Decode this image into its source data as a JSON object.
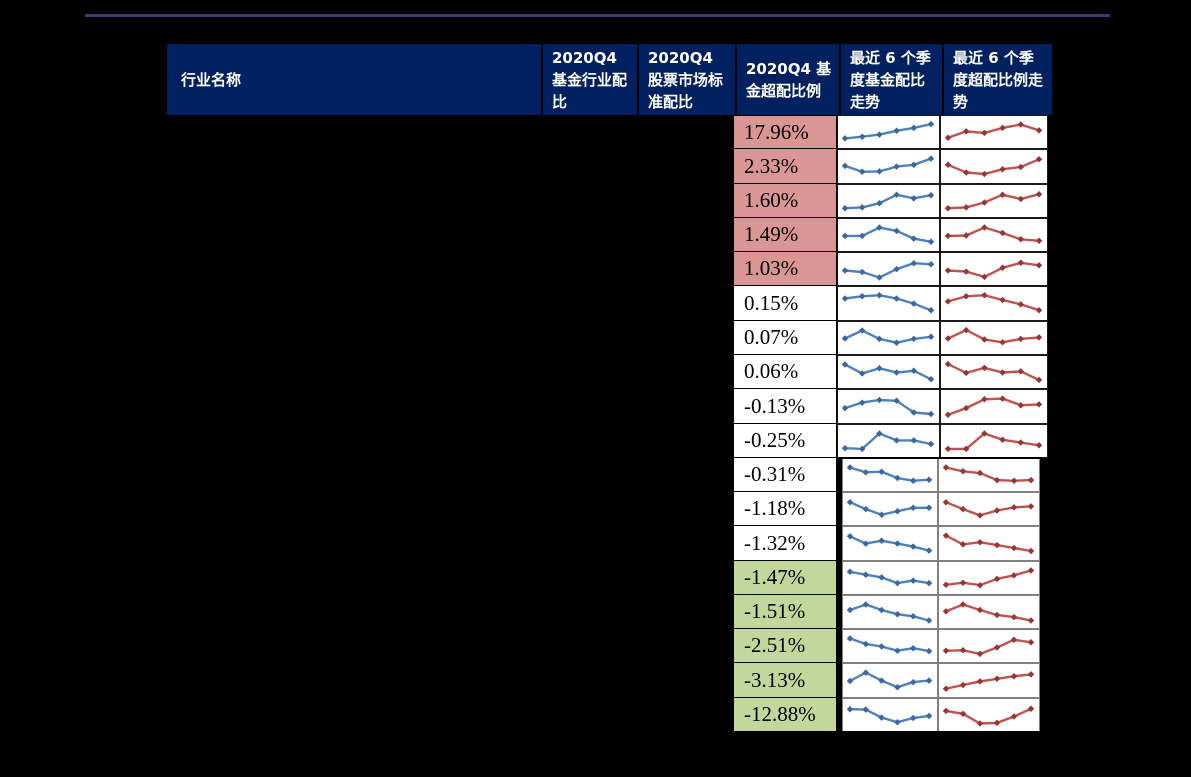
{
  "page": {
    "background": "#000000",
    "top_rule_color": "#3e3d72"
  },
  "table": {
    "header": {
      "bg": "#002060",
      "text_color": "#ffffff",
      "columns": [
        {
          "label": "行业名称"
        },
        {
          "label": "2020Q4 基金行业配比"
        },
        {
          "label": "2020Q4 股票市场标准配比"
        },
        {
          "label": "2020Q4 基金超配比例"
        },
        {
          "label": "最近 6 个季度基金配比走势"
        },
        {
          "label": "最近 6 个季度超配比例走势"
        }
      ]
    },
    "band_colors": {
      "pink": "#d99694",
      "white": "#ffffff",
      "green": "#c3d69b"
    },
    "spark_style": {
      "fund_line": "#4f81bd",
      "fund_marker": "#3a679c",
      "over_line": "#bf5350",
      "over_marker": "#953735"
    },
    "rows": [
      {
        "over_allocation": "17.96%",
        "band": "pink",
        "fund_trend": [
          0.22,
          0.3,
          0.4,
          0.58,
          0.72,
          0.9
        ],
        "over_trend": [
          0.25,
          0.55,
          0.48,
          0.72,
          0.88,
          0.6
        ]
      },
      {
        "over_allocation": "2.33%",
        "band": "pink",
        "fund_trend": [
          0.55,
          0.28,
          0.3,
          0.52,
          0.6,
          0.88
        ],
        "over_trend": [
          0.6,
          0.25,
          0.18,
          0.4,
          0.5,
          0.85
        ]
      },
      {
        "over_allocation": "1.60%",
        "band": "pink",
        "fund_trend": [
          0.18,
          0.22,
          0.42,
          0.82,
          0.65,
          0.8
        ],
        "over_trend": [
          0.18,
          0.22,
          0.45,
          0.82,
          0.62,
          0.85
        ]
      },
      {
        "over_allocation": "1.49%",
        "band": "pink",
        "fund_trend": [
          0.48,
          0.48,
          0.88,
          0.72,
          0.35,
          0.2
        ],
        "over_trend": [
          0.48,
          0.5,
          0.88,
          0.62,
          0.32,
          0.25
        ]
      },
      {
        "over_allocation": "1.03%",
        "band": "pink",
        "fund_trend": [
          0.45,
          0.38,
          0.12,
          0.52,
          0.8,
          0.75
        ],
        "over_trend": [
          0.45,
          0.4,
          0.15,
          0.58,
          0.82,
          0.7
        ]
      },
      {
        "over_allocation": "0.15%",
        "band": "white",
        "fund_trend": [
          0.75,
          0.85,
          0.9,
          0.75,
          0.52,
          0.22
        ],
        "over_trend": [
          0.62,
          0.85,
          0.9,
          0.68,
          0.48,
          0.22
        ]
      },
      {
        "over_allocation": "0.07%",
        "band": "white",
        "fund_trend": [
          0.5,
          0.88,
          0.48,
          0.3,
          0.48,
          0.58
        ],
        "over_trend": [
          0.5,
          0.9,
          0.45,
          0.32,
          0.48,
          0.55
        ]
      },
      {
        "over_allocation": "0.06%",
        "band": "white",
        "fund_trend": [
          0.88,
          0.45,
          0.7,
          0.5,
          0.58,
          0.18
        ],
        "over_trend": [
          0.9,
          0.48,
          0.72,
          0.5,
          0.55,
          0.15
        ]
      },
      {
        "over_allocation": "-0.13%",
        "band": "white",
        "fund_trend": [
          0.45,
          0.7,
          0.82,
          0.78,
          0.25,
          0.18
        ],
        "over_trend": [
          0.15,
          0.45,
          0.85,
          0.88,
          0.58,
          0.62
        ]
      },
      {
        "over_allocation": "-0.25%",
        "band": "white",
        "fund_trend": [
          0.18,
          0.15,
          0.88,
          0.55,
          0.55,
          0.38
        ],
        "over_trend": [
          0.15,
          0.15,
          0.88,
          0.58,
          0.45,
          0.32
        ]
      },
      {
        "over_allocation": "-0.31%",
        "band": "white",
        "fund_trend": [
          0.88,
          0.65,
          0.68,
          0.38,
          0.25,
          0.3
        ],
        "over_trend": [
          0.88,
          0.7,
          0.62,
          0.28,
          0.25,
          0.28
        ]
      },
      {
        "over_allocation": "-1.18%",
        "band": "white",
        "fund_trend": [
          0.85,
          0.52,
          0.25,
          0.42,
          0.58,
          0.58
        ],
        "over_trend": [
          0.85,
          0.52,
          0.22,
          0.45,
          0.6,
          0.65
        ]
      },
      {
        "over_allocation": "-1.32%",
        "band": "white",
        "fund_trend": [
          0.85,
          0.52,
          0.65,
          0.52,
          0.38,
          0.2
        ],
        "over_trend": [
          0.88,
          0.48,
          0.58,
          0.45,
          0.32,
          0.18
        ]
      },
      {
        "over_allocation": "-1.47%",
        "band": "green",
        "fund_trend": [
          0.82,
          0.68,
          0.55,
          0.28,
          0.4,
          0.28
        ],
        "over_trend": [
          0.2,
          0.3,
          0.18,
          0.48,
          0.65,
          0.88
        ]
      },
      {
        "over_allocation": "-1.51%",
        "band": "green",
        "fund_trend": [
          0.62,
          0.88,
          0.62,
          0.42,
          0.32,
          0.12
        ],
        "over_trend": [
          0.55,
          0.88,
          0.62,
          0.38,
          0.28,
          0.12
        ]
      },
      {
        "over_allocation": "-2.51%",
        "band": "green",
        "fund_trend": [
          0.88,
          0.62,
          0.5,
          0.3,
          0.42,
          0.28
        ],
        "over_trend": [
          0.3,
          0.32,
          0.15,
          0.45,
          0.82,
          0.7
        ]
      },
      {
        "over_allocation": "-3.13%",
        "band": "green",
        "fund_trend": [
          0.5,
          0.88,
          0.52,
          0.22,
          0.45,
          0.52
        ],
        "over_trend": [
          0.15,
          0.32,
          0.48,
          0.6,
          0.72,
          0.8
        ]
      },
      {
        "over_allocation": "-12.88%",
        "band": "green",
        "fund_trend": [
          0.8,
          0.78,
          0.4,
          0.18,
          0.38,
          0.48
        ],
        "over_trend": [
          0.72,
          0.58,
          0.12,
          0.15,
          0.45,
          0.82
        ]
      }
    ]
  }
}
